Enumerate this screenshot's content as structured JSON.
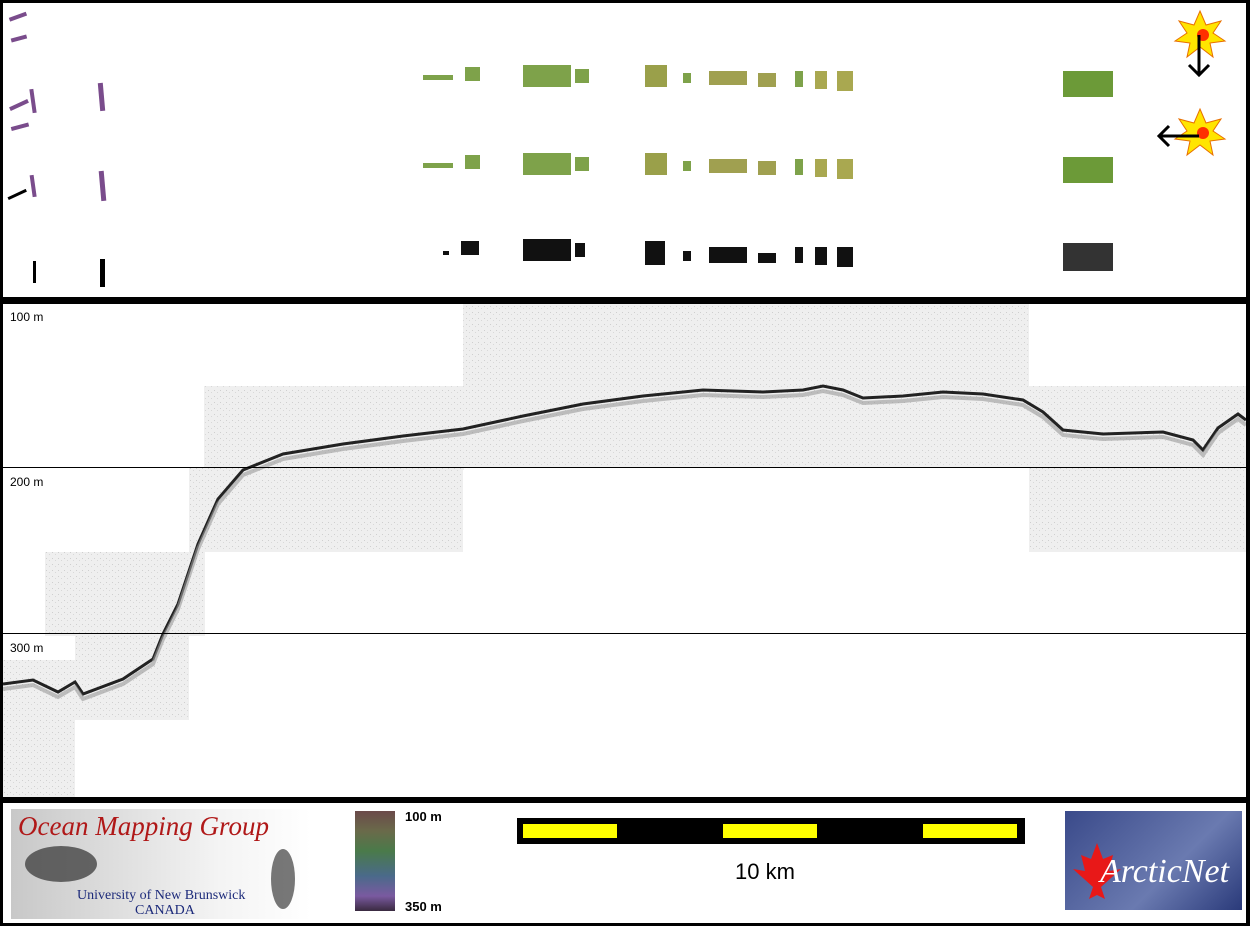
{
  "depth_labels": {
    "d100": "100 m",
    "d200": "200 m",
    "d300": "300 m"
  },
  "logo": {
    "title": "Ocean Mapping Group",
    "university": "University of New Brunswick",
    "country": "CANADA",
    "color": "#b01818"
  },
  "color_scale": {
    "top_label": "100 m",
    "bottom_label": "350 m"
  },
  "scale_bar": {
    "label": "10 km",
    "colors": [
      "#ffff00",
      "#000000"
    ]
  },
  "partner_logo": {
    "text": "ArcticNet",
    "icon": "maple-leaf-icon"
  },
  "icons": [
    "sun-icon",
    "arrow-down-icon",
    "arrow-left-icon"
  ]
}
